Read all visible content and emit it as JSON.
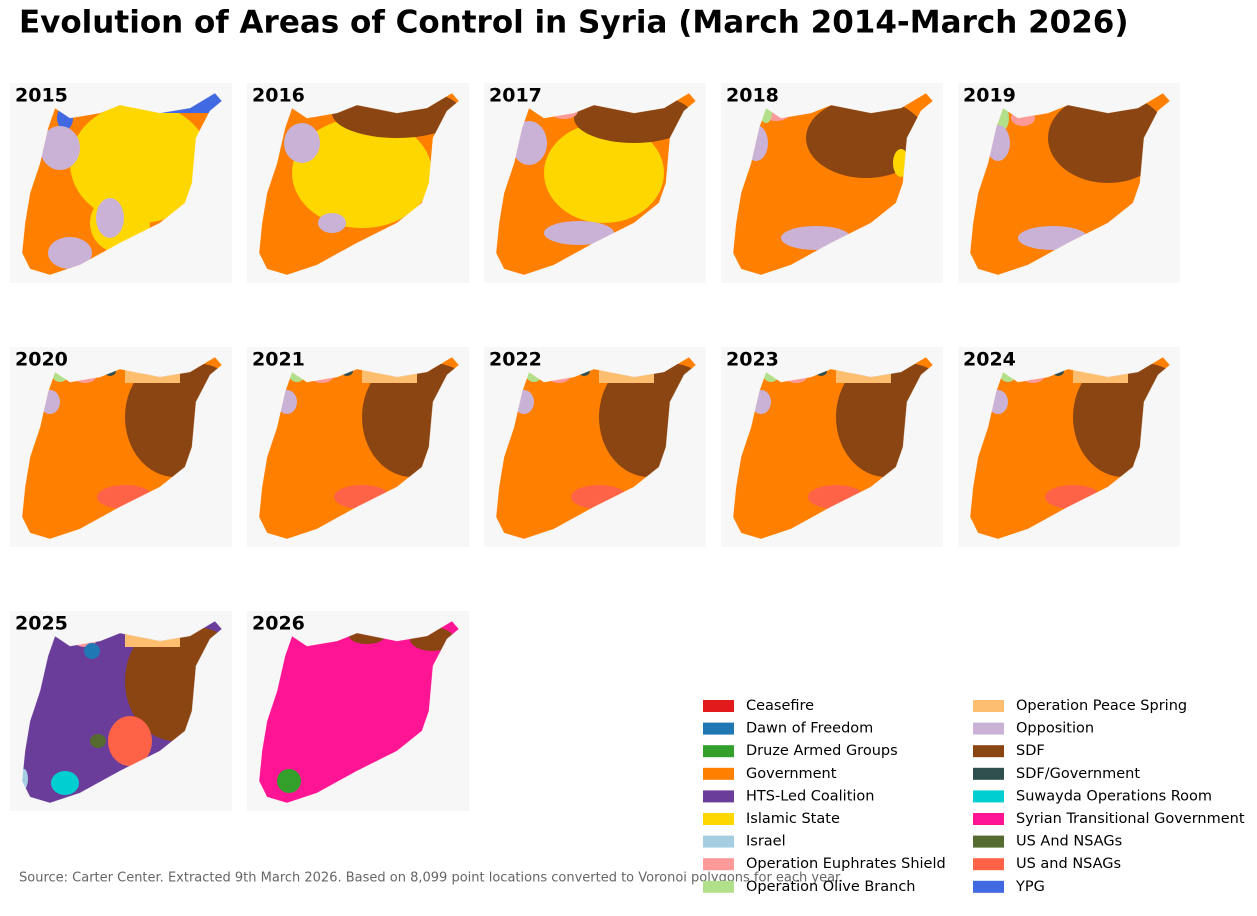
{
  "title": "Evolution of Areas of Control in Syria (March 2014-March 2026)",
  "panels": [
    "2015",
    "2016",
    "2017",
    "2018",
    "2019",
    "2020",
    "2021",
    "2022",
    "2023",
    "2024",
    "2025",
    "2026"
  ],
  "legend": [
    {
      "name": "Ceasefire",
      "color": "#e31a1c"
    },
    {
      "name": "Dawn of Freedom",
      "color": "#1f78b4"
    },
    {
      "name": "Druze Armed Groups",
      "color": "#33a02c"
    },
    {
      "name": "Government",
      "color": "#ff7f00"
    },
    {
      "name": "HTS-Led Coalition",
      "color": "#6a3d9a"
    },
    {
      "name": "Islamic State",
      "color": "#ffd700"
    },
    {
      "name": "Israel",
      "color": "#a6cee3"
    },
    {
      "name": "Operation Euphrates Shield",
      "color": "#fb9a99"
    },
    {
      "name": "Operation Olive Branch",
      "color": "#b2df8a"
    },
    {
      "name": "Operation Peace Spring",
      "color": "#fdbf6f"
    },
    {
      "name": "Opposition",
      "color": "#cab2d6"
    },
    {
      "name": "SDF",
      "color": "#8b4513"
    },
    {
      "name": "SDF/Government",
      "color": "#2f4f4f"
    },
    {
      "name": "Suwayda Operations Room",
      "color": "#00ced1"
    },
    {
      "name": "Syrian Transitional Government",
      "color": "#ff1493"
    },
    {
      "name": "US And NSAGs",
      "color": "#556b2f"
    },
    {
      "name": "US and NSAGs",
      "color": "#ff6347"
    },
    {
      "name": "YPG",
      "color": "#4169e1"
    }
  ],
  "source": "Source: Carter Center. Extracted 9th March 2026. Based on 8,099 point locations converted to Voronoi polygons for each year."
}
